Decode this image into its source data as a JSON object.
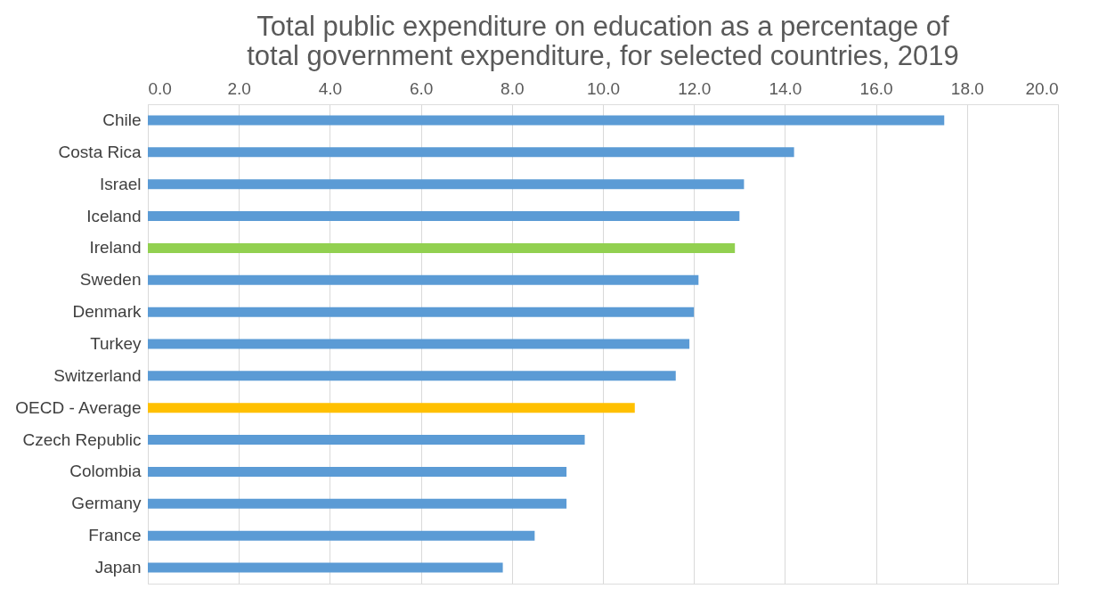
{
  "chart_data": {
    "type": "bar",
    "orientation": "horizontal",
    "title": "Total public expenditure on education as a percentage of total government expenditure, for selected countries, 2019",
    "categories": [
      "Chile",
      "Costa Rica",
      "Israel",
      "Iceland",
      "Ireland",
      "Sweden",
      "Denmark",
      "Turkey",
      "Switzerland",
      "OECD - Average",
      "Czech Republic",
      "Colombia",
      "Germany",
      "France",
      "Japan"
    ],
    "values": [
      17.5,
      14.2,
      13.1,
      13.0,
      12.9,
      12.1,
      12.0,
      11.9,
      11.6,
      10.7,
      9.6,
      9.2,
      9.2,
      8.5,
      7.8
    ],
    "colors": [
      "#5b9bd5",
      "#5b9bd5",
      "#5b9bd5",
      "#5b9bd5",
      "#92d050",
      "#5b9bd5",
      "#5b9bd5",
      "#5b9bd5",
      "#5b9bd5",
      "#ffc000",
      "#5b9bd5",
      "#5b9bd5",
      "#5b9bd5",
      "#5b9bd5",
      "#5b9bd5"
    ],
    "xlim": [
      0,
      20
    ],
    "xticks": [
      {
        "value": 0,
        "label": "0.0"
      },
      {
        "value": 2,
        "label": "2.0"
      },
      {
        "value": 4,
        "label": "4.0"
      },
      {
        "value": 6,
        "label": "6.0"
      },
      {
        "value": 8,
        "label": "8.0"
      },
      {
        "value": 10,
        "label": "10.0"
      },
      {
        "value": 12,
        "label": "12.0"
      },
      {
        "value": 14,
        "label": "14.0"
      },
      {
        "value": 16,
        "label": "16.0"
      },
      {
        "value": 18,
        "label": "18.0"
      },
      {
        "value": 20,
        "label": "20.0"
      }
    ],
    "grid": "x"
  }
}
